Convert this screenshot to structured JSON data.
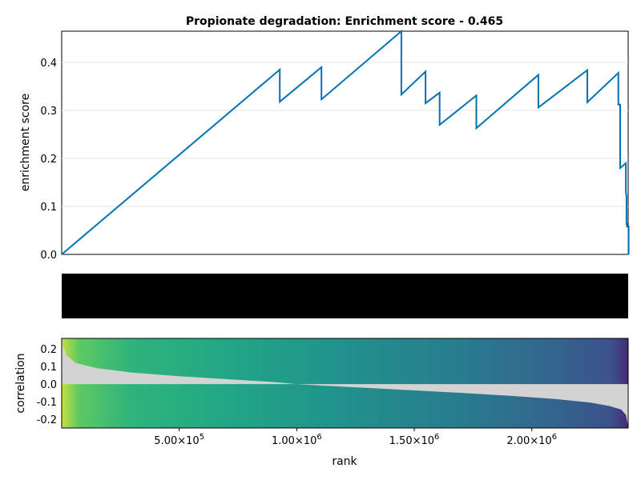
{
  "chart_data": [
    {
      "type": "line",
      "title": "Propionate degradation: Enrichment score - 0.465",
      "xlabel": "",
      "ylabel": "enrichment score",
      "xlim": [
        1,
        2410000
      ],
      "ylim": [
        0.0,
        0.465
      ],
      "yticks": [
        0.0,
        0.1,
        0.2,
        0.3,
        0.4
      ],
      "ytick_labels": [
        "0.0",
        "0.1",
        "0.2",
        "0.3",
        "0.4"
      ],
      "grid": true,
      "color": "#0072b2",
      "x": [
        0,
        928000,
        928000,
        1105000,
        1105000,
        1445000,
        1445000,
        1548000,
        1548000,
        1608000,
        1608000,
        1764000,
        1764000,
        2028000,
        2028000,
        2236000,
        2236000,
        2368000,
        2368000,
        2376000,
        2376000,
        2400000,
        2400000,
        2403000,
        2403000,
        2405000,
        2405000,
        2412000,
        2412000
      ],
      "y": [
        0.0,
        0.385,
        0.318,
        0.39,
        0.323,
        0.465,
        0.333,
        0.381,
        0.315,
        0.337,
        0.27,
        0.331,
        0.263,
        0.374,
        0.306,
        0.384,
        0.317,
        0.378,
        0.312,
        0.312,
        0.18,
        0.19,
        0.13,
        0.12,
        0.062,
        0.065,
        0.058,
        0.058,
        0.0
      ]
    },
    {
      "type": "barcode",
      "description_hits": "gene set members shown as vertical lines over rank",
      "xlim": [
        1,
        2410000
      ],
      "color": "#000000"
    },
    {
      "type": "area",
      "title": "",
      "xlabel": "rank",
      "ylabel": "correlation",
      "xlim": [
        1,
        2410000
      ],
      "ylim": [
        -0.25,
        0.26
      ],
      "xticks": [
        500000,
        1000000,
        1500000,
        2000000
      ],
      "xtick_mantissas": [
        "5.00×10",
        "1.00×10",
        "1.50×10",
        "2.00×10"
      ],
      "xtick_exponent": "5,6,6,6",
      "yticks": [
        0.2,
        0.1,
        0.0,
        -0.1,
        -0.2
      ],
      "ytick_labels": [
        "0.2",
        "0.1",
        "0.0",
        "-0.1",
        "-0.2"
      ],
      "fill_color": "#d3d3d3",
      "colormap": "viridis",
      "x": [
        0,
        5000,
        20000,
        60000,
        150000,
        300000,
        500000,
        700000,
        900000,
        1000000,
        1100000,
        1300000,
        1500000,
        1700000,
        1900000,
        2100000,
        2250000,
        2330000,
        2380000,
        2400000,
        2410000
      ],
      "y": [
        0.26,
        0.22,
        0.165,
        0.12,
        0.09,
        0.065,
        0.045,
        0.028,
        0.012,
        0.0,
        -0.008,
        -0.022,
        -0.036,
        -0.05,
        -0.066,
        -0.085,
        -0.105,
        -0.125,
        -0.145,
        -0.175,
        -0.24
      ]
    }
  ]
}
